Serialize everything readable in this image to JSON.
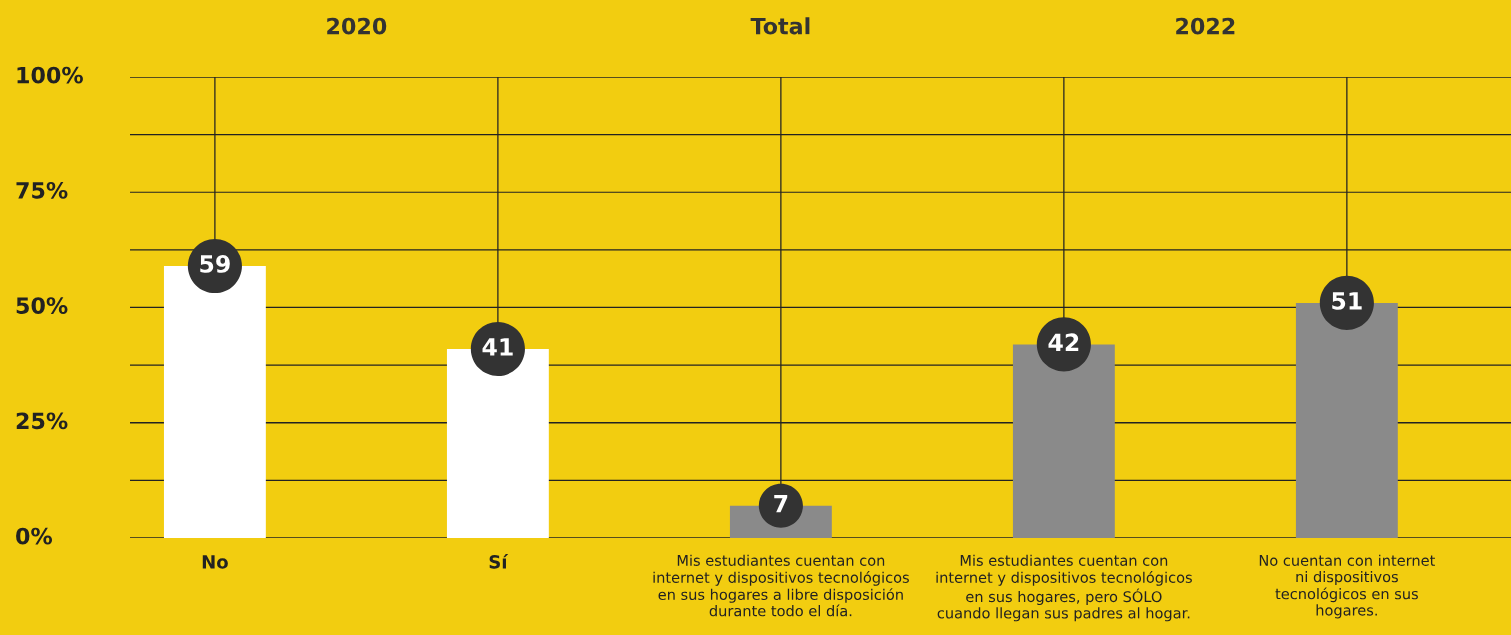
{
  "chart_data": {
    "type": "bar",
    "categories": [
      "No",
      "Sí",
      "Mis estudiantes cuentan con\ninternet y dispositivos tecnológicos\nen sus hogares a libre disposición\ndurante todo el día.",
      "Mis estudiantes cuentan con\ninternet y dispositivos tecnológicos\nen sus hogares, pero SÓLO\ncuando llegan sus padres al hogar.",
      "No cuentan con internet\nni dispositivos\ntecnológicos en sus\nhogares."
    ],
    "values": [
      59,
      41,
      7,
      42,
      51
    ],
    "colors": [
      "#ffffff",
      "#ffffff",
      "#8a8a8a",
      "#8a8a8a",
      "#8a8a8a"
    ],
    "data_labels": true,
    "annotations": [
      "2020",
      "Total",
      "2022"
    ],
    "ylim": [
      0,
      100
    ],
    "yticks": [
      {
        "value": 0,
        "label": "0%"
      },
      {
        "value": 12.5,
        "label": null
      },
      {
        "value": 25,
        "label": "25%"
      },
      {
        "value": 37.5,
        "label": null
      },
      {
        "value": 50,
        "label": "50%"
      },
      {
        "value": 62.5,
        "label": null
      },
      {
        "value": 75,
        "label": "75%"
      },
      {
        "value": 87.5,
        "label": null
      },
      {
        "value": 100,
        "label": "100%"
      }
    ],
    "grid": true,
    "legend": false
  }
}
